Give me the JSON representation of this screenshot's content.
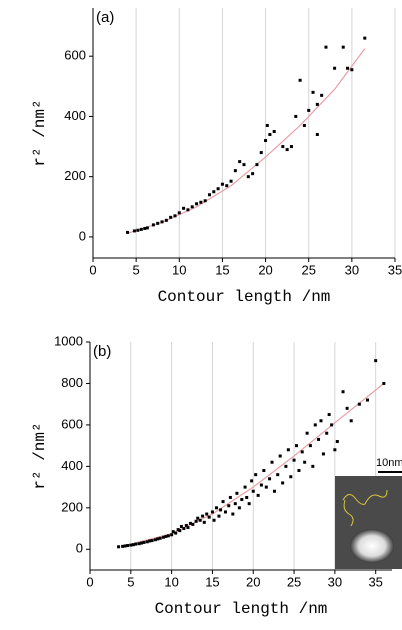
{
  "chart_data": [
    {
      "type": "scatter",
      "panel_label": "(a)",
      "xlabel": "Contour length /nm",
      "ylabel": "r² /nm²",
      "xlim": [
        0,
        35
      ],
      "ylim": [
        -70,
        760
      ],
      "xticks": [
        0,
        5,
        10,
        15,
        20,
        25,
        30,
        35
      ],
      "yticks": [
        0,
        200,
        400,
        600
      ],
      "grid": "x",
      "series": [
        {
          "color": "#000000",
          "marker": "dot",
          "x": [
            4,
            4.8,
            5.2,
            5.6,
            6,
            6.3,
            7,
            7.5,
            8,
            8.5,
            9,
            9.5,
            10,
            10.5,
            11,
            11.5,
            12,
            12.5,
            13,
            13.5,
            14,
            14.5,
            15,
            15.5,
            16,
            16.5,
            17,
            17.5,
            18,
            18.5,
            19,
            19.5,
            20,
            20.2,
            20.5,
            21,
            22,
            22.5,
            23,
            23.5,
            24,
            24.5,
            25,
            25.5,
            26,
            26,
            26.5,
            27,
            28,
            29,
            29.5,
            30,
            31.5
          ],
          "values": [
            15,
            20,
            22,
            25,
            28,
            30,
            40,
            45,
            50,
            55,
            65,
            70,
            80,
            95,
            90,
            100,
            110,
            115,
            120,
            140,
            150,
            160,
            175,
            170,
            185,
            220,
            250,
            240,
            200,
            210,
            240,
            280,
            320,
            370,
            340,
            350,
            300,
            290,
            300,
            400,
            520,
            370,
            420,
            480,
            440,
            340,
            470,
            630,
            560,
            630,
            560,
            555,
            660
          ]
        },
        {
          "color": "#e8a0a8",
          "marker": "line",
          "x": [
            4,
            8,
            12,
            16,
            20,
            24,
            28,
            31.5
          ],
          "values": [
            12,
            48,
            100,
            170,
            265,
            370,
            490,
            625
          ]
        }
      ]
    },
    {
      "type": "scatter",
      "panel_label": "(b)",
      "xlabel": "Contour length /nm",
      "ylabel": "r² /nm²",
      "annotation": "10nm",
      "xlim": [
        0,
        37
      ],
      "ylim": [
        -100,
        1000
      ],
      "xticks": [
        0,
        5,
        10,
        15,
        20,
        25,
        30,
        35
      ],
      "yticks": [
        0,
        200,
        400,
        600,
        800,
        1000
      ],
      "grid": "x",
      "series": [
        {
          "color": "#000000",
          "marker": "dot",
          "x": [
            3.5,
            4,
            4.3,
            4.6,
            5,
            5.3,
            5.6,
            6,
            6.3,
            6.6,
            7,
            7.3,
            7.6,
            8,
            8.3,
            8.6,
            9,
            9.3,
            9.6,
            10,
            10.2,
            10.5,
            10.8,
            11,
            11.2,
            11.5,
            11.8,
            12,
            12.3,
            12.6,
            13,
            13.2,
            13.5,
            13.8,
            14,
            14.3,
            14.6,
            15,
            15.2,
            15.5,
            15.8,
            16,
            16.3,
            16.6,
            17,
            17.2,
            17.5,
            17.8,
            18,
            18.3,
            18.6,
            19,
            19.2,
            19.5,
            19.8,
            20,
            20.3,
            20.6,
            21,
            21.3,
            21.6,
            22,
            22.3,
            22.6,
            23,
            23.3,
            23.6,
            24,
            24.3,
            24.6,
            25,
            25.3,
            25.6,
            26,
            26.3,
            26.6,
            27,
            27.3,
            27.6,
            28,
            28.3,
            28.6,
            29,
            29.3,
            29.6,
            30,
            30.3,
            31,
            31.5,
            32,
            33,
            34,
            35,
            36
          ],
          "values": [
            12,
            14,
            16,
            18,
            20,
            22,
            25,
            27,
            30,
            33,
            36,
            40,
            42,
            46,
            50,
            53,
            58,
            62,
            65,
            70,
            85,
            78,
            95,
            90,
            110,
            100,
            115,
            105,
            125,
            120,
            135,
            150,
            140,
            160,
            130,
            170,
            155,
            180,
            140,
            200,
            160,
            190,
            230,
            180,
            210,
            250,
            170,
            220,
            270,
            200,
            240,
            300,
            250,
            220,
            330,
            280,
            360,
            260,
            310,
            380,
            300,
            340,
            420,
            280,
            360,
            450,
            320,
            400,
            480,
            350,
            430,
            500,
            380,
            470,
            420,
            560,
            500,
            400,
            600,
            530,
            620,
            460,
            560,
            650,
            600,
            480,
            520,
            760,
            680,
            620,
            700,
            720,
            910,
            800
          ]
        },
        {
          "color": "#e8a0a8",
          "marker": "line",
          "x": [
            4,
            10,
            15,
            20,
            25,
            30,
            36
          ],
          "values": [
            15,
            75,
            170,
            300,
            450,
            610,
            800
          ]
        }
      ]
    }
  ]
}
